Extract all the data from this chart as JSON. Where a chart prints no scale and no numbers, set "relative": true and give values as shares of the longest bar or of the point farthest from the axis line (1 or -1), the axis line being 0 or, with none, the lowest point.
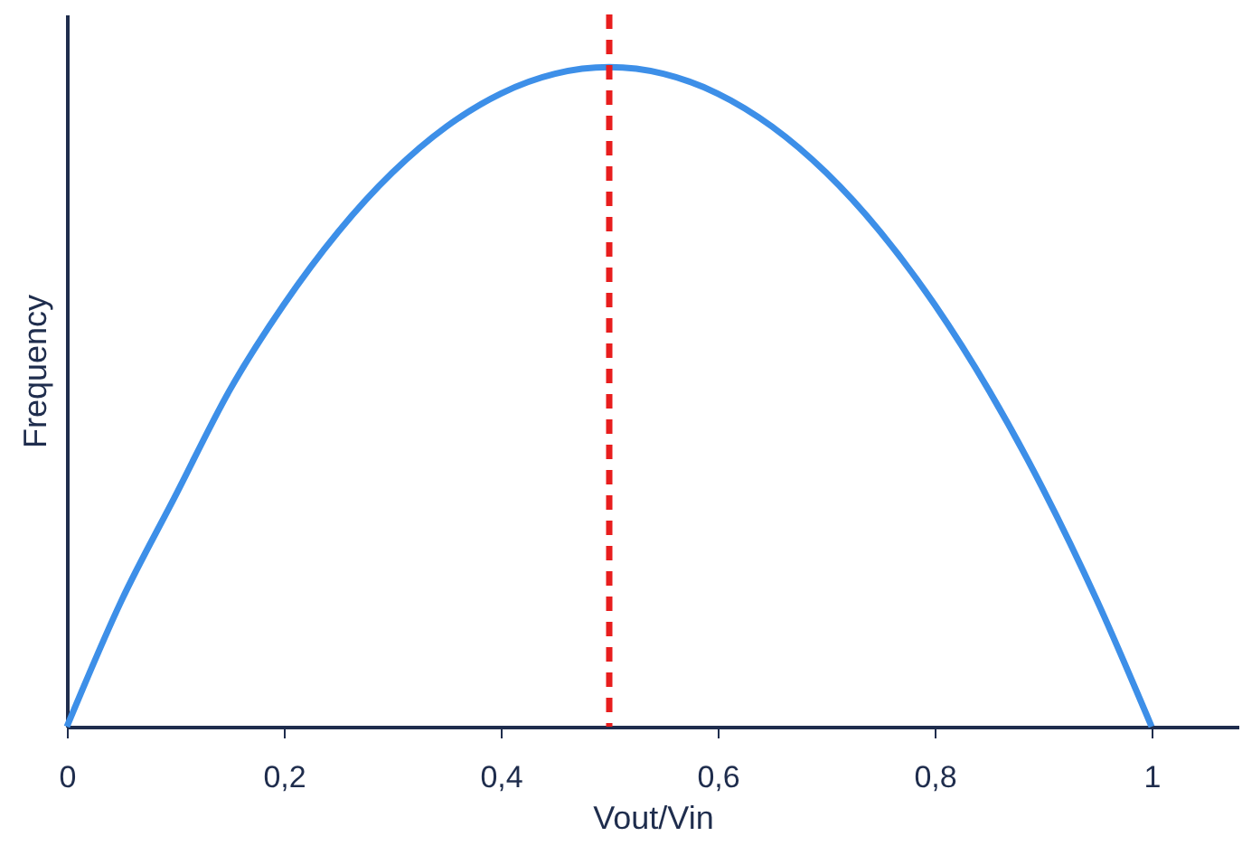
{
  "chart_data": {
    "type": "line",
    "xlabel": "Vout/Vin",
    "ylabel": "Frequency",
    "relative": true,
    "x": [
      0,
      0.05,
      0.1,
      0.15,
      0.2,
      0.25,
      0.3,
      0.35,
      0.4,
      0.45,
      0.5,
      0.55,
      0.6,
      0.65,
      0.7,
      0.75,
      0.8,
      0.85,
      0.9,
      0.95,
      1
    ],
    "series": [
      {
        "color": "#3d8fe8",
        "values": [
          0,
          0.19,
          0.35,
          0.51,
          0.64,
          0.75,
          0.84,
          0.91,
          0.96,
          0.99,
          1,
          0.99,
          0.96,
          0.91,
          0.84,
          0.75,
          0.64,
          0.51,
          0.36,
          0.19,
          0
        ]
      }
    ],
    "xlim": [
      0,
      1.08
    ],
    "xticks": [
      0,
      {
        "value": 0.2,
        "label": "0,2"
      },
      {
        "value": 0.4,
        "label": "0,4"
      },
      {
        "value": 0.6,
        "label": "0,6"
      },
      {
        "value": 0.8,
        "label": "0,8"
      },
      1
    ],
    "ref_lines": [
      {
        "axis": "x",
        "value": 0.5,
        "color": "#e81d1d",
        "line_style": "dashed"
      }
    ],
    "grid": false,
    "marker": "none",
    "line_style": "solid"
  }
}
